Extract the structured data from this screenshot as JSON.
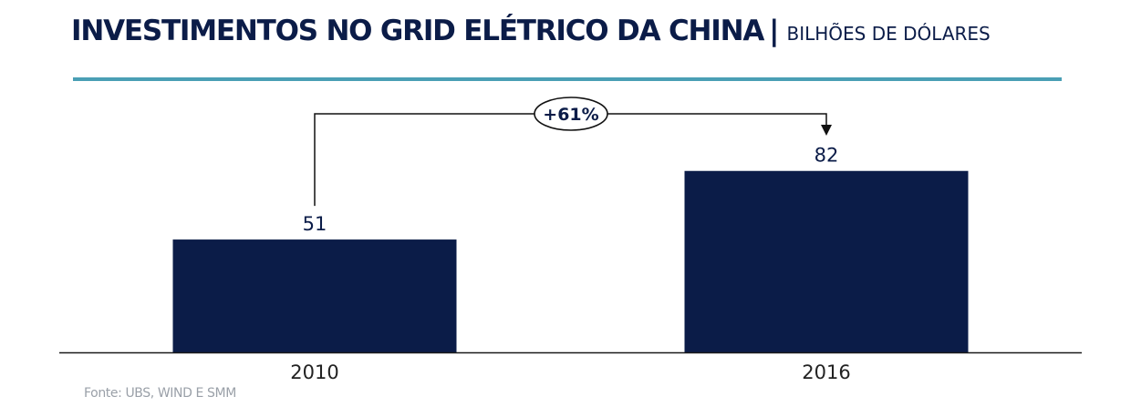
{
  "header": {
    "title": "INVESTIMENTOS NO GRID ELÉTRICO DA CHINA",
    "separator": "|",
    "subtitle": "BILHÕES DE DÓLARES"
  },
  "colors": {
    "bar": "#0b1c48",
    "rule": "#4a9fb5",
    "text": "#0b1c48",
    "axis": "#1a1a1a",
    "source": "#9aa0a8"
  },
  "chart_data": {
    "type": "bar",
    "categories": [
      "2010",
      "2016"
    ],
    "values": [
      51,
      82
    ],
    "data_labels": [
      "51",
      "82"
    ],
    "title": "INVESTIMENTOS NO GRID ELÉTRICO DA CHINA",
    "subtitle": "BILHÕES DE DÓLARES",
    "xlabel": "",
    "ylabel": "",
    "ylim": [
      0,
      100
    ],
    "grid": false,
    "annotation": {
      "from": "2010",
      "to": "2016",
      "label": "+61%"
    }
  },
  "footer": {
    "source": "Fonte: UBS, WIND E SMM"
  }
}
